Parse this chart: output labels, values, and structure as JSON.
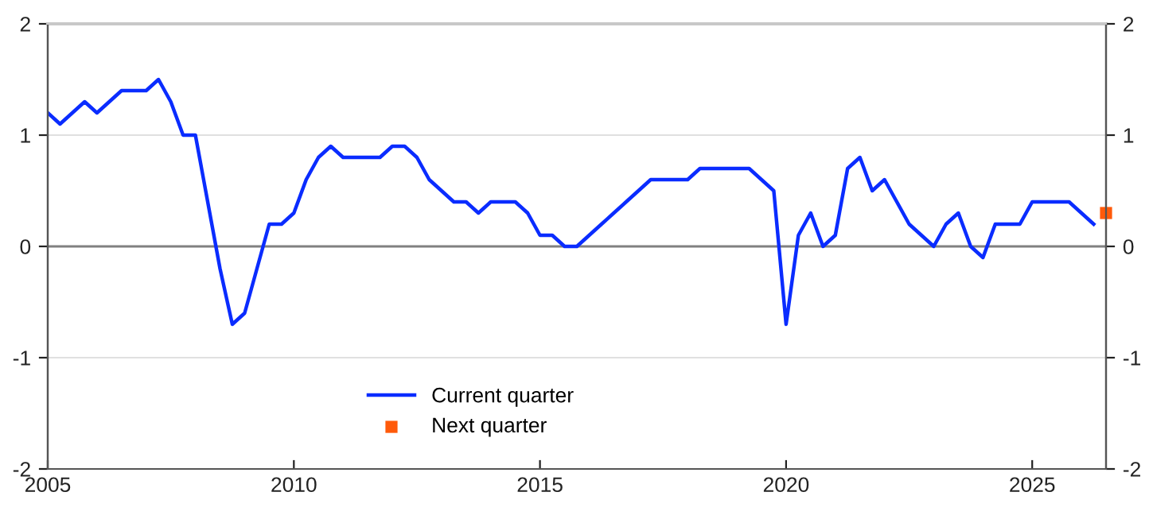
{
  "chart_data": {
    "type": "line",
    "xlim": [
      2005,
      2026.5
    ],
    "xticks": [
      2005,
      2010,
      2015,
      2020,
      2025
    ],
    "ylim": [
      -2,
      2
    ],
    "yticks": [
      -2,
      -1,
      0,
      1,
      2
    ],
    "y2lim": [
      -2,
      2
    ],
    "y2ticks": [
      -2,
      -1,
      0,
      1,
      2
    ],
    "grid": "y",
    "legend": "bottom",
    "ref_lines": [
      {
        "axis": "y",
        "value": 0,
        "color": "#808080"
      }
    ],
    "series": [
      {
        "name": "Current quarter",
        "color": "#0a2cff",
        "marker": "none",
        "line_style": "solid",
        "x": [
          2005.0,
          2005.25,
          2005.5,
          2005.75,
          2006.0,
          2006.25,
          2006.5,
          2006.75,
          2007.0,
          2007.25,
          2007.5,
          2007.75,
          2008.0,
          2008.25,
          2008.5,
          2008.75,
          2009.0,
          2009.25,
          2009.5,
          2009.75,
          2010.0,
          2010.25,
          2010.5,
          2010.75,
          2011.0,
          2011.25,
          2011.5,
          2011.75,
          2012.0,
          2012.25,
          2012.5,
          2012.75,
          2013.0,
          2013.25,
          2013.5,
          2013.75,
          2014.0,
          2014.25,
          2014.5,
          2014.75,
          2015.0,
          2015.25,
          2015.5,
          2015.75,
          2016.0,
          2016.25,
          2016.5,
          2016.75,
          2017.0,
          2017.25,
          2017.5,
          2017.75,
          2018.0,
          2018.25,
          2018.5,
          2018.75,
          2019.0,
          2019.25,
          2019.5,
          2019.75,
          2020.0,
          2020.25,
          2020.5,
          2020.75,
          2021.0,
          2021.25,
          2021.5,
          2021.75,
          2022.0,
          2022.25,
          2022.5,
          2022.75,
          2023.0,
          2023.25,
          2023.5,
          2023.75,
          2024.0,
          2024.25,
          2024.5,
          2024.75,
          2025.0,
          2025.25,
          2025.5,
          2025.75,
          2026.0,
          2026.25
        ],
        "values": [
          1.2,
          1.1,
          1.2,
          1.3,
          1.2,
          1.3,
          1.4,
          1.4,
          1.4,
          1.5,
          1.3,
          1.0,
          1.0,
          0.4,
          -0.2,
          -0.7,
          -0.6,
          -0.2,
          0.2,
          0.2,
          0.3,
          0.6,
          0.8,
          0.9,
          0.8,
          0.8,
          0.8,
          0.8,
          0.9,
          0.9,
          0.8,
          0.6,
          0.5,
          0.4,
          0.4,
          0.3,
          0.4,
          0.4,
          0.4,
          0.3,
          0.1,
          0.1,
          0.0,
          0.0,
          0.1,
          0.2,
          0.3,
          0.4,
          0.5,
          0.6,
          0.6,
          0.6,
          0.6,
          0.7,
          0.7,
          0.7,
          0.7,
          0.7,
          0.6,
          0.5,
          -0.7,
          0.1,
          0.3,
          0.0,
          0.1,
          0.7,
          0.8,
          0.5,
          0.6,
          0.4,
          0.2,
          0.1,
          0.0,
          0.2,
          0.3,
          0.0,
          -0.1,
          0.2,
          0.2,
          0.2,
          0.4,
          0.4,
          0.4,
          0.4,
          0.3,
          0.2
        ]
      },
      {
        "name": "Next quarter",
        "color": "#ff5a0a",
        "type": "scatter",
        "marker": "square",
        "x": [
          2026.5
        ],
        "values": [
          0.3
        ]
      }
    ]
  }
}
